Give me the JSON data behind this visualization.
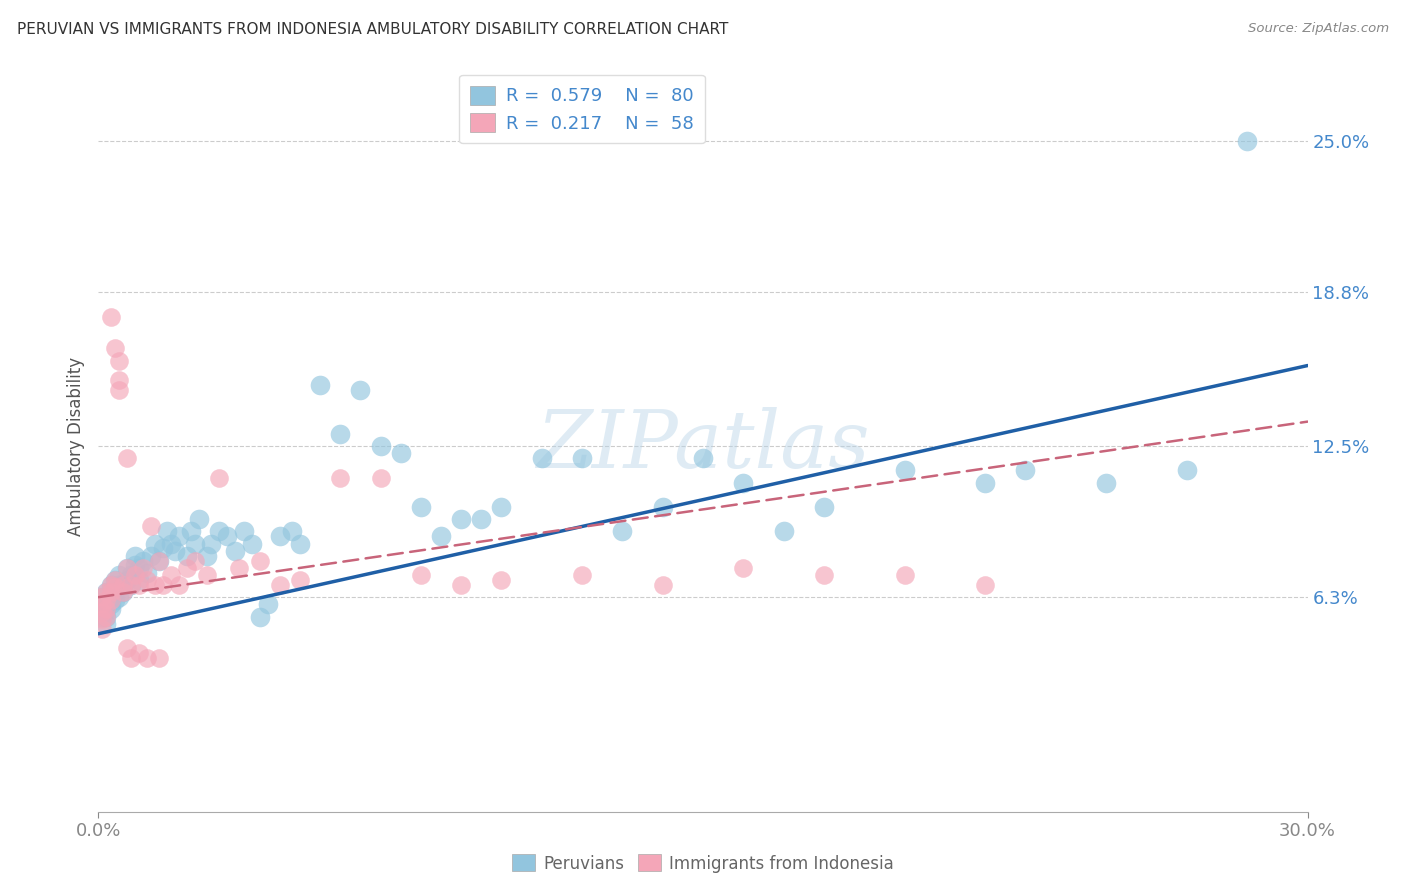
{
  "title": "PERUVIAN VS IMMIGRANTS FROM INDONESIA AMBULATORY DISABILITY CORRELATION CHART",
  "source": "Source: ZipAtlas.com",
  "ylabel_label": "Ambulatory Disability",
  "ytick_labels": [
    "6.3%",
    "12.5%",
    "18.8%",
    "25.0%"
  ],
  "ytick_values": [
    0.063,
    0.125,
    0.188,
    0.25
  ],
  "xmin": 0.0,
  "xmax": 0.3,
  "ymin": -0.025,
  "ymax": 0.275,
  "color_blue": "#92c5de",
  "color_pink": "#f4a6b8",
  "trendline_blue": "#1f5fa6",
  "trendline_pink": "#c8647a",
  "watermark": "ZIPatlas",
  "blue_line_x0": 0.0,
  "blue_line_y0": 0.048,
  "blue_line_x1": 0.3,
  "blue_line_y1": 0.158,
  "pink_line_x0": 0.0,
  "pink_line_y0": 0.063,
  "pink_line_x1": 0.3,
  "pink_line_y1": 0.135,
  "peru_x": [
    0.001,
    0.001,
    0.001,
    0.001,
    0.001,
    0.002,
    0.002,
    0.002,
    0.002,
    0.002,
    0.003,
    0.003,
    0.003,
    0.003,
    0.004,
    0.004,
    0.004,
    0.005,
    0.005,
    0.005,
    0.006,
    0.006,
    0.007,
    0.007,
    0.008,
    0.008,
    0.009,
    0.009,
    0.01,
    0.01,
    0.011,
    0.012,
    0.013,
    0.014,
    0.015,
    0.016,
    0.017,
    0.018,
    0.019,
    0.02,
    0.022,
    0.023,
    0.024,
    0.025,
    0.027,
    0.028,
    0.03,
    0.032,
    0.034,
    0.036,
    0.038,
    0.04,
    0.042,
    0.045,
    0.048,
    0.05,
    0.055,
    0.06,
    0.065,
    0.07,
    0.075,
    0.08,
    0.085,
    0.09,
    0.095,
    0.1,
    0.11,
    0.12,
    0.13,
    0.14,
    0.15,
    0.16,
    0.17,
    0.18,
    0.2,
    0.22,
    0.23,
    0.25,
    0.27,
    0.285
  ],
  "peru_y": [
    0.063,
    0.06,
    0.058,
    0.056,
    0.055,
    0.065,
    0.06,
    0.058,
    0.055,
    0.052,
    0.068,
    0.063,
    0.06,
    0.058,
    0.07,
    0.065,
    0.062,
    0.072,
    0.068,
    0.063,
    0.068,
    0.065,
    0.075,
    0.07,
    0.072,
    0.068,
    0.08,
    0.076,
    0.075,
    0.07,
    0.078,
    0.073,
    0.08,
    0.085,
    0.078,
    0.083,
    0.09,
    0.085,
    0.082,
    0.088,
    0.08,
    0.09,
    0.085,
    0.095,
    0.08,
    0.085,
    0.09,
    0.088,
    0.082,
    0.09,
    0.085,
    0.055,
    0.06,
    0.088,
    0.09,
    0.085,
    0.15,
    0.13,
    0.148,
    0.125,
    0.122,
    0.1,
    0.088,
    0.095,
    0.095,
    0.1,
    0.12,
    0.12,
    0.09,
    0.1,
    0.12,
    0.11,
    0.09,
    0.1,
    0.115,
    0.11,
    0.115,
    0.11,
    0.115,
    0.25
  ],
  "indo_x": [
    0.001,
    0.001,
    0.001,
    0.001,
    0.001,
    0.002,
    0.002,
    0.002,
    0.002,
    0.003,
    0.003,
    0.003,
    0.004,
    0.004,
    0.005,
    0.005,
    0.006,
    0.006,
    0.007,
    0.007,
    0.008,
    0.009,
    0.01,
    0.011,
    0.012,
    0.013,
    0.014,
    0.015,
    0.016,
    0.018,
    0.02,
    0.022,
    0.024,
    0.027,
    0.03,
    0.035,
    0.04,
    0.045,
    0.05,
    0.06,
    0.07,
    0.08,
    0.09,
    0.1,
    0.12,
    0.14,
    0.16,
    0.18,
    0.2,
    0.22,
    0.003,
    0.004,
    0.005,
    0.007,
    0.008,
    0.01,
    0.012,
    0.015
  ],
  "indo_y": [
    0.063,
    0.06,
    0.057,
    0.054,
    0.05,
    0.065,
    0.062,
    0.058,
    0.055,
    0.068,
    0.065,
    0.062,
    0.07,
    0.067,
    0.152,
    0.148,
    0.068,
    0.065,
    0.075,
    0.12,
    0.068,
    0.072,
    0.068,
    0.075,
    0.07,
    0.092,
    0.068,
    0.078,
    0.068,
    0.072,
    0.068,
    0.075,
    0.078,
    0.072,
    0.112,
    0.075,
    0.078,
    0.068,
    0.07,
    0.112,
    0.112,
    0.072,
    0.068,
    0.07,
    0.072,
    0.068,
    0.075,
    0.072,
    0.072,
    0.068,
    0.178,
    0.165,
    0.16,
    0.042,
    0.038,
    0.04,
    0.038,
    0.038
  ]
}
